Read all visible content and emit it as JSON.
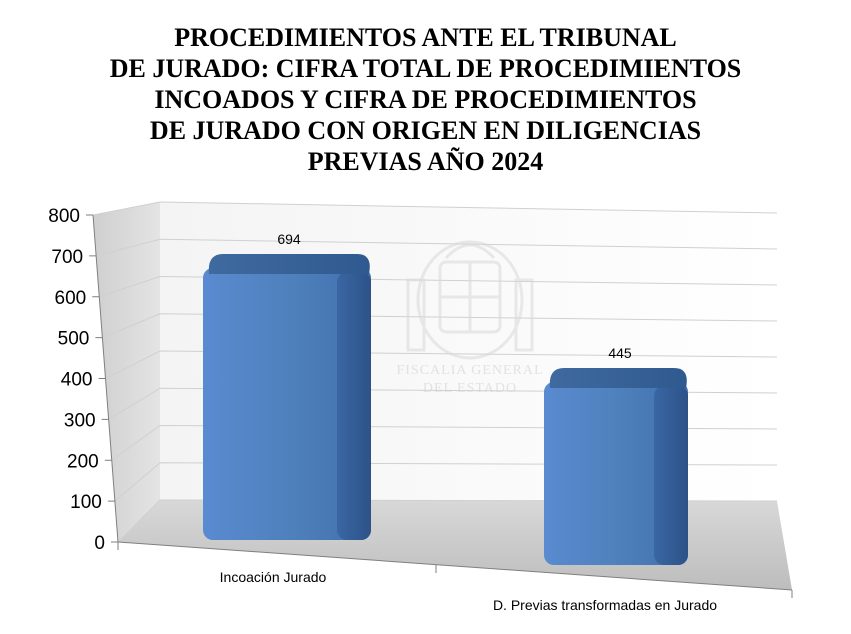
{
  "chart_data": {
    "type": "bar",
    "title_lines": [
      "PROCEDIMIENTOS ANTE EL TRIBUNAL",
      "DE JURADO: CIFRA TOTAL DE PROCEDIMIENTOS",
      "INCOADOS Y CIFRA DE PROCEDIMIENTOS",
      "DE JURADO CON ORIGEN EN DILIGENCIAS",
      "PREVIAS AÑO 2024"
    ],
    "categories": [
      "Incoación Jurado",
      "D. Previas transformadas en Jurado"
    ],
    "values": [
      694,
      445
    ],
    "data_labels": [
      "694",
      "445"
    ],
    "ylim": [
      0,
      800
    ],
    "yticks": [
      "0",
      "100",
      "200",
      "300",
      "400",
      "500",
      "600",
      "700",
      "800"
    ],
    "grid": true,
    "legend": "none",
    "bar_color": "#4f81bd",
    "watermark_lines": [
      "FISCALIA GENERAL",
      "DEL ESTADO"
    ]
  }
}
